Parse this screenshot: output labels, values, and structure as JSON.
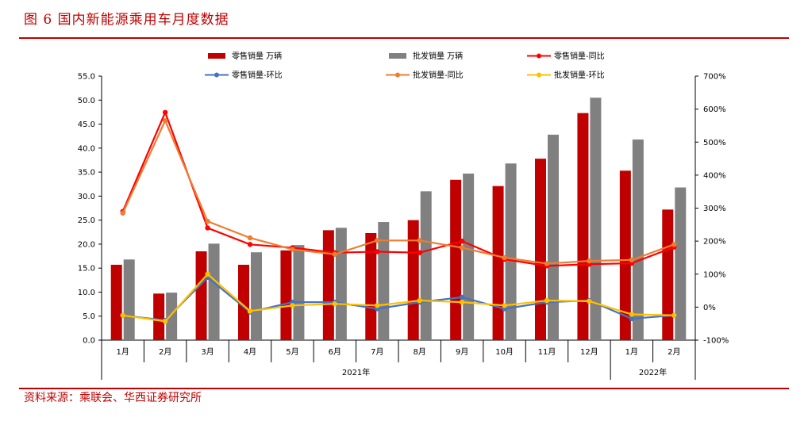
{
  "figure": {
    "title": "图 6 国内新能源乘用车月度数据",
    "source": "资料来源：乘联会、华西证券研究所"
  },
  "chart_data": {
    "type": "bar",
    "title": "",
    "categories": [
      "1月",
      "2月",
      "3月",
      "4月",
      "5月",
      "6月",
      "7月",
      "8月",
      "9月",
      "10月",
      "11月",
      "12月",
      "1月",
      "2月"
    ],
    "year_groups": [
      {
        "label": "2021年",
        "count": 12
      },
      {
        "label": "2022年",
        "count": 2
      }
    ],
    "left_axis": {
      "ylim": [
        0,
        55
      ],
      "ticks": [
        "0.0",
        "5.0",
        "10.0",
        "15.0",
        "20.0",
        "25.0",
        "30.0",
        "35.0",
        "40.0",
        "45.0",
        "50.0",
        "55.0"
      ]
    },
    "right_axis": {
      "ylim": [
        -100,
        700
      ],
      "ticks": [
        "-100%",
        "0%",
        "100%",
        "200%",
        "300%",
        "400%",
        "500%",
        "600%",
        "700%"
      ]
    },
    "series": [
      {
        "name": "零售销量 万辆",
        "kind": "bar",
        "axis": "left",
        "color": "#c00000",
        "values": [
          15.7,
          9.7,
          18.5,
          15.7,
          18.7,
          22.9,
          22.3,
          25.0,
          33.4,
          32.1,
          37.8,
          47.3,
          35.3,
          27.2
        ]
      },
      {
        "name": "批发销量 万辆",
        "kind": "bar",
        "axis": "left",
        "color": "#808080",
        "values": [
          16.8,
          9.9,
          20.1,
          18.3,
          19.8,
          23.4,
          24.6,
          31.0,
          34.7,
          36.8,
          42.8,
          50.5,
          41.8,
          31.8
        ]
      },
      {
        "name": "零售销量-同比",
        "kind": "line",
        "axis": "right",
        "color": "#ff0000",
        "values": [
          290,
          590,
          240,
          190,
          180,
          165,
          168,
          165,
          200,
          145,
          125,
          130,
          133,
          182
        ]
      },
      {
        "name": "零售销量-环比",
        "kind": "line",
        "axis": "right",
        "color": "#4472c4",
        "values": [
          -25,
          -40,
          90,
          -15,
          15,
          15,
          -5,
          15,
          30,
          -5,
          15,
          20,
          -35,
          -25
        ]
      },
      {
        "name": "批发销量-同比",
        "kind": "line",
        "axis": "right",
        "color": "#ed7d31",
        "values": [
          285,
          565,
          260,
          210,
          175,
          160,
          202,
          202,
          180,
          150,
          132,
          140,
          143,
          190
        ]
      },
      {
        "name": "批发销量-环比",
        "kind": "line",
        "axis": "right",
        "color": "#ffc000",
        "values": [
          -25,
          -43,
          100,
          -12,
          5,
          10,
          5,
          20,
          15,
          5,
          20,
          18,
          -22,
          -25
        ]
      }
    ],
    "legend_position": "top",
    "grid": false
  }
}
